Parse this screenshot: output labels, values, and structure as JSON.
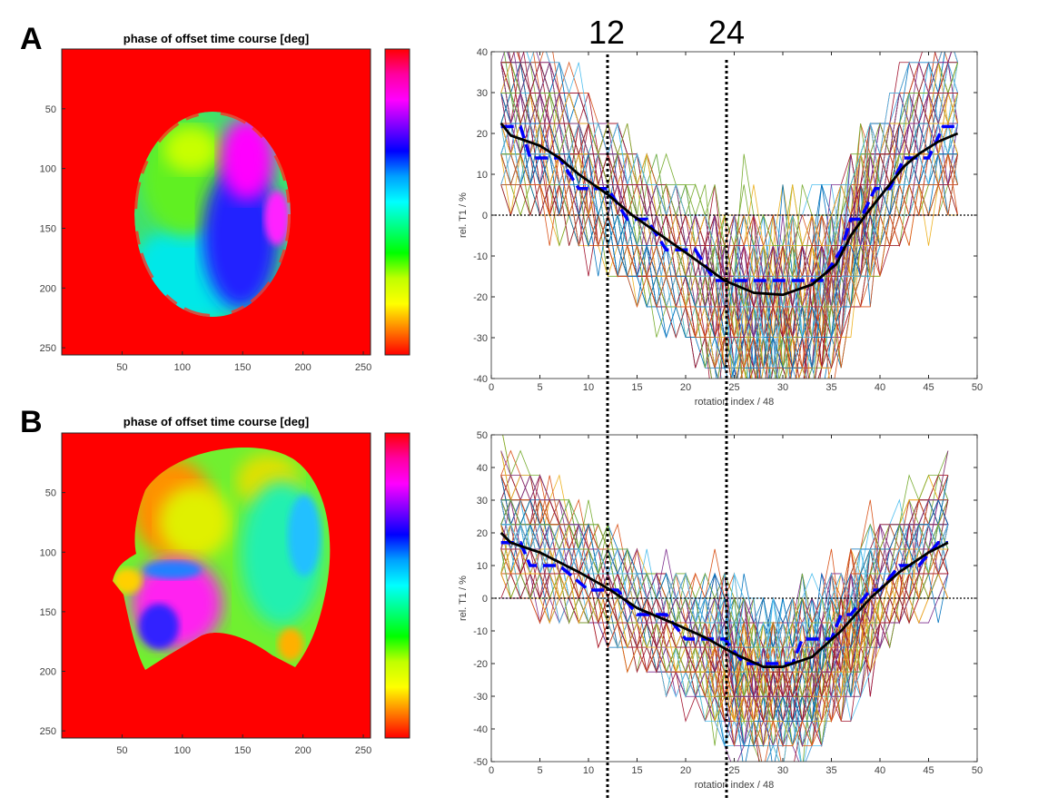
{
  "panels": [
    {
      "letter": "A",
      "image": {
        "title": "phase of offset time course [deg]",
        "x_ticks": [
          "50",
          "100",
          "150",
          "200",
          "250"
        ],
        "y_ticks": [
          "50",
          "100",
          "150",
          "200",
          "250"
        ],
        "colormap": [
          "#ff0000",
          "#ff00a0",
          "#ff00ff",
          "#8000ff",
          "#0000ff",
          "#00a0ff",
          "#00ffff",
          "#00ff80",
          "#00ff00",
          "#c0ff00",
          "#ffff00",
          "#ff8000",
          "#ff0000"
        ]
      }
    },
    {
      "letter": "B",
      "image": {
        "title": "phase of offset time course [deg]",
        "x_ticks": [
          "50",
          "100",
          "150",
          "200",
          "250"
        ],
        "y_ticks": [
          "50",
          "100",
          "150",
          "200",
          "250"
        ],
        "colormap": [
          "#ff0000",
          "#ff00a0",
          "#ff00ff",
          "#8000ff",
          "#0000ff",
          "#00a0ff",
          "#00ffff",
          "#00ff80",
          "#00ff00",
          "#c0ff00",
          "#ffff00",
          "#ff8000",
          "#ff0000"
        ]
      }
    }
  ],
  "markers": {
    "line1_label": "12",
    "line2_label": "24",
    "line1_x": 12,
    "line2_x": 24
  },
  "chart_data": [
    {
      "type": "line",
      "panel": "A",
      "xlabel": "rotation index / 48",
      "ylabel": "rel. T1 / %",
      "xlim": [
        0,
        50
      ],
      "ylim": [
        -40,
        40
      ],
      "x_ticks": [
        "0",
        "5",
        "10",
        "15",
        "20",
        "25",
        "30",
        "35",
        "40",
        "45",
        "50"
      ],
      "y_ticks": [
        "40",
        "30",
        "20",
        "10",
        "0",
        "-10",
        "-20",
        "-30",
        "-40"
      ],
      "grid": false,
      "reference_line_y": 0,
      "fit_curve": {
        "color": "#000000",
        "x": [
          1,
          2,
          5,
          7,
          9,
          12,
          14.5,
          17.5,
          20.5,
          24,
          27,
          30,
          33,
          35.5,
          37,
          38.5,
          40.5,
          42.5,
          44,
          46,
          48
        ],
        "y": [
          22.5,
          19.5,
          17,
          14,
          10,
          5,
          0,
          -5,
          -10,
          -16,
          -19,
          -19.5,
          -17,
          -12,
          -5,
          0,
          6,
          12,
          15,
          18,
          20
        ]
      },
      "median_steps": {
        "color": "#0000ff",
        "x": [
          1,
          3,
          4,
          7,
          9,
          12,
          14,
          15,
          16,
          18,
          21,
          23,
          34,
          36,
          37,
          38,
          39.5,
          41,
          42.5,
          45,
          46.5,
          48
        ],
        "y": [
          21.7,
          21.7,
          14,
          14,
          6.5,
          6.5,
          -1,
          -1,
          -1,
          -8.5,
          -8.5,
          -16,
          -16,
          -8.5,
          -1,
          -1,
          6.5,
          6.5,
          14,
          14,
          21.7,
          21.7
        ]
      },
      "voxel_trace_colors": [
        "#0072BD",
        "#D95319",
        "#EDB120",
        "#7E2F8E",
        "#77AC30",
        "#4DBEEE",
        "#A2142F"
      ]
    },
    {
      "type": "line",
      "panel": "B",
      "xlabel": "rotation index / 48",
      "ylabel": "rel. T1 / %",
      "xlim": [
        0,
        50
      ],
      "ylim": [
        -50,
        50
      ],
      "x_ticks": [
        "0",
        "5",
        "10",
        "15",
        "20",
        "25",
        "30",
        "35",
        "40",
        "45",
        "50"
      ],
      "y_ticks": [
        "50",
        "40",
        "30",
        "20",
        "10",
        "0",
        "-10",
        "-20",
        "-30",
        "-40",
        "-50"
      ],
      "grid": false,
      "reference_line_y": 0,
      "fit_curve": {
        "color": "#000000",
        "x": [
          1,
          2,
          5,
          9,
          12,
          15,
          19,
          22,
          25,
          28,
          30,
          33,
          36,
          39,
          42,
          45,
          47
        ],
        "y": [
          20,
          17,
          14,
          8,
          3,
          -3,
          -8,
          -12,
          -17,
          -21,
          -21,
          -18,
          -10,
          0,
          8,
          14,
          17
        ]
      },
      "median_steps": {
        "color": "#0000ff",
        "x": [
          1,
          3,
          4,
          7,
          10,
          13,
          15,
          18,
          20,
          24,
          26,
          31,
          32,
          35,
          36,
          37,
          39,
          40,
          42,
          44,
          46,
          47
        ],
        "y": [
          17,
          17,
          10,
          10,
          2.5,
          2.5,
          -5,
          -5,
          -12.5,
          -12.5,
          -20,
          -20,
          -12.5,
          -12.5,
          -5,
          -5,
          2.5,
          2.5,
          10,
          10,
          17,
          17
        ]
      },
      "voxel_trace_colors": [
        "#0072BD",
        "#D95319",
        "#EDB120",
        "#7E2F8E",
        "#77AC30",
        "#4DBEEE",
        "#A2142F"
      ]
    }
  ]
}
